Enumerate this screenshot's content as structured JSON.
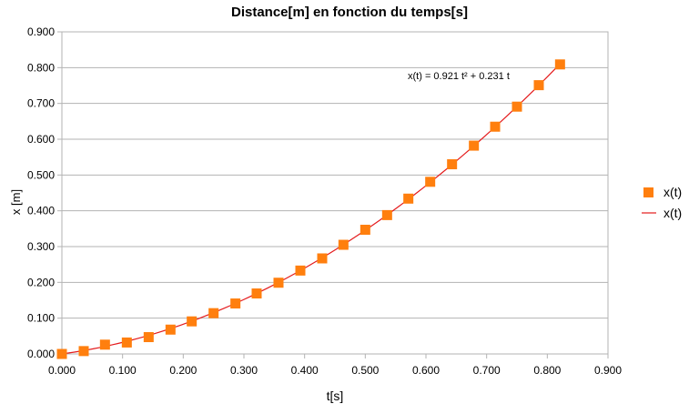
{
  "chart_data": {
    "type": "scatter",
    "title": "Distance[m] en fonction du temps[s]",
    "xlabel": "t[s]",
    "ylabel": "x [m]",
    "xlim": [
      0,
      0.9
    ],
    "ylim": [
      0,
      0.9
    ],
    "x_ticks": [
      "0.000",
      "0.100",
      "0.200",
      "0.300",
      "0.400",
      "0.500",
      "0.600",
      "0.700",
      "0.800",
      "0.900"
    ],
    "y_ticks": [
      "0.000",
      "0.100",
      "0.200",
      "0.300",
      "0.400",
      "0.500",
      "0.600",
      "0.700",
      "0.800",
      "0.900"
    ],
    "grid": "horizontal",
    "legend_position": "right",
    "series": [
      {
        "name": "x(t)",
        "kind": "markers",
        "marker": "square",
        "color": "#ff7f0e",
        "points": [
          [
            0.0,
            0.0
          ],
          [
            0.036,
            0.008
          ],
          [
            0.071,
            0.026
          ],
          [
            0.107,
            0.032
          ],
          [
            0.143,
            0.047
          ],
          [
            0.179,
            0.068
          ],
          [
            0.214,
            0.091
          ],
          [
            0.25,
            0.114
          ],
          [
            0.286,
            0.141
          ],
          [
            0.321,
            0.169
          ],
          [
            0.357,
            0.199
          ],
          [
            0.393,
            0.233
          ],
          [
            0.429,
            0.267
          ],
          [
            0.464,
            0.305
          ],
          [
            0.5,
            0.347
          ],
          [
            0.536,
            0.388
          ],
          [
            0.571,
            0.434
          ],
          [
            0.607,
            0.481
          ],
          [
            0.643,
            0.53
          ],
          [
            0.679,
            0.582
          ],
          [
            0.714,
            0.635
          ],
          [
            0.75,
            0.691
          ],
          [
            0.786,
            0.751
          ],
          [
            0.821,
            0.809
          ]
        ]
      },
      {
        "name": "x(t)",
        "kind": "trendline",
        "color": "#e41a1c",
        "a": 0.921,
        "b": 0.231,
        "x_range": [
          0,
          0.821
        ]
      }
    ],
    "equation_label": "x(t) = 0.921 t² + 0.231 t"
  }
}
